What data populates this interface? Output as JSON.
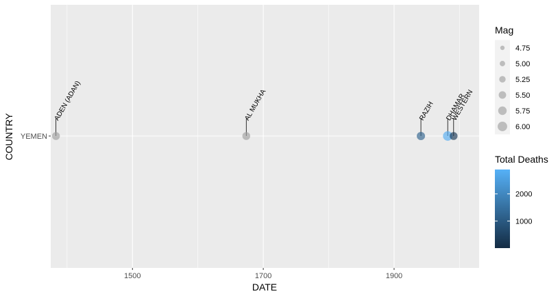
{
  "chart_data": {
    "type": "scatter",
    "xlabel": "DATE",
    "ylabel": "COUNTRY",
    "xlim": [
      1375,
      2030
    ],
    "x_ticks": [
      1500,
      1700,
      1900
    ],
    "x_tick_labels": [
      "1500",
      "1700",
      "1900"
    ],
    "categories": [
      "YEMEN"
    ],
    "grid": true,
    "points": [
      {
        "x": 1383,
        "category": "YEMEN",
        "label": "ADEN (ADAN)",
        "mag": 5.6,
        "deaths": null
      },
      {
        "x": 1674,
        "category": "YEMEN",
        "label": "AL MUKHA",
        "mag": 5.6,
        "deaths": null
      },
      {
        "x": 1941,
        "category": "YEMEN",
        "label": "RAZIH",
        "mag": 5.7,
        "deaths": 1200
      },
      {
        "x": 1982,
        "category": "YEMEN",
        "label": "DHAMAR",
        "mag": 6.0,
        "deaths": 2800
      },
      {
        "x": 1991,
        "category": "YEMEN",
        "label": "WESTERN",
        "mag": 5.6,
        "deaths": 300
      }
    ],
    "legend_placement": "right",
    "size_legend": {
      "title": "Mag",
      "values": [
        4.75,
        5.0,
        5.25,
        5.5,
        5.75,
        6.0
      ],
      "labels": [
        "4.75",
        "5.00",
        "5.25",
        "5.50",
        "5.75",
        "6.00"
      ]
    },
    "color_legend": {
      "title": "Total Deaths",
      "range": [
        0,
        2900
      ],
      "breaks": [
        1000,
        2000
      ],
      "labels": [
        "1000",
        "2000"
      ],
      "low_color": "#132B43",
      "high_color": "#56B1F7",
      "na_color": "#a0a0a0"
    }
  }
}
